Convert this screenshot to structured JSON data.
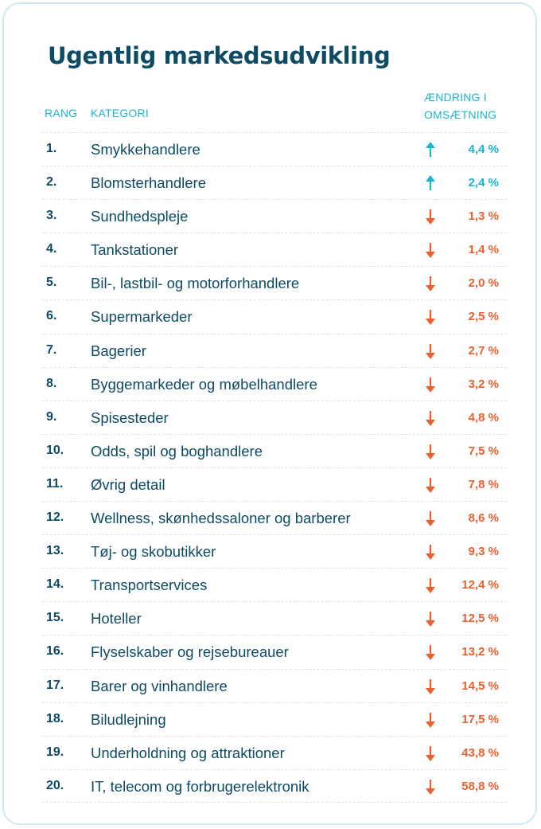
{
  "title": "Ugentlig markedsudvikling",
  "headers": {
    "rank": "RANG",
    "category": "KATEGORI",
    "change": "ÆNDRING I OMSÆTNING"
  },
  "colors": {
    "up": "#19b5cf",
    "down": "#ec5f2d",
    "text": "#0d4a63",
    "border": "#cfe9f3"
  },
  "chart_data": {
    "type": "table",
    "title": "Ugentlig markedsudvikling",
    "columns": [
      "RANG",
      "KATEGORI",
      "ÆNDRING I OMSÆTNING"
    ],
    "rows": [
      {
        "rank": "1.",
        "category": "Smykkehandlere",
        "direction": "up",
        "value": "4,4 %"
      },
      {
        "rank": "2.",
        "category": "Blomsterhandlere",
        "direction": "up",
        "value": "2,4 %"
      },
      {
        "rank": "3.",
        "category": "Sundhedspleje",
        "direction": "down",
        "value": "1,3 %"
      },
      {
        "rank": "4.",
        "category": "Tankstationer",
        "direction": "down",
        "value": "1,4 %"
      },
      {
        "rank": "5.",
        "category": "Bil-, lastbil- og motorforhandlere",
        "direction": "down",
        "value": "2,0 %"
      },
      {
        "rank": "6.",
        "category": "Supermarkeder",
        "direction": "down",
        "value": "2,5 %"
      },
      {
        "rank": "7.",
        "category": "Bagerier",
        "direction": "down",
        "value": "2,7 %"
      },
      {
        "rank": "8.",
        "category": "Byggemarkeder og møbelhandlere",
        "direction": "down",
        "value": "3,2 %"
      },
      {
        "rank": "9.",
        "category": "Spisesteder",
        "direction": "down",
        "value": "4,8 %"
      },
      {
        "rank": "10.",
        "category": "Odds, spil og boghandlere",
        "direction": "down",
        "value": "7,5 %"
      },
      {
        "rank": "11.",
        "category": "Øvrig detail",
        "direction": "down",
        "value": "7,8 %"
      },
      {
        "rank": "12.",
        "category": "Wellness, skønhedssaloner og barberer",
        "direction": "down",
        "value": "8,6 %"
      },
      {
        "rank": "13.",
        "category": "Tøj- og skobutikker",
        "direction": "down",
        "value": "9,3 %"
      },
      {
        "rank": "14.",
        "category": "Transportservices",
        "direction": "down",
        "value": "12,4 %"
      },
      {
        "rank": "15.",
        "category": "Hoteller",
        "direction": "down",
        "value": "12,5 %"
      },
      {
        "rank": "16.",
        "category": "Flyselskaber og rejsebureauer",
        "direction": "down",
        "value": "13,2 %"
      },
      {
        "rank": "17.",
        "category": "Barer og vinhandlere",
        "direction": "down",
        "value": "14,5 %"
      },
      {
        "rank": "18.",
        "category": "Biludlejning",
        "direction": "down",
        "value": "17,5 %"
      },
      {
        "rank": "19.",
        "category": "Underholdning og attraktioner",
        "direction": "down",
        "value": "43,8 %"
      },
      {
        "rank": "20.",
        "category": "IT, telecom og forbrugerelektronik",
        "direction": "down",
        "value": "58,8 %"
      }
    ]
  }
}
